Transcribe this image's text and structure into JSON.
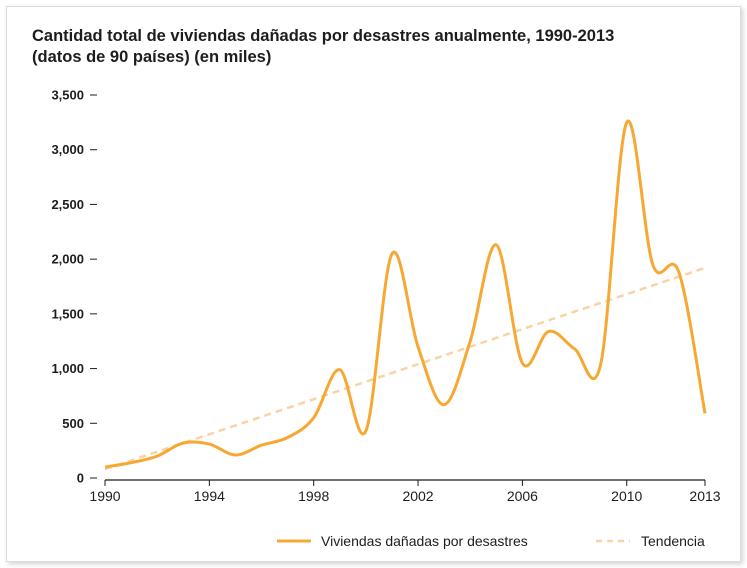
{
  "colors": {
    "series": "#f7a833",
    "trend": "#f9d3a3",
    "axis": "#1d1d1b",
    "text": "#1d1d1b"
  },
  "chart_data": {
    "type": "line",
    "title": "Cantidad total de viviendas dañadas por desastres anualmente, 1990-2013",
    "subtitle": "(datos de 90 países) (en miles)",
    "xlabel": "",
    "ylabel": "",
    "xlim": [
      1990,
      2013
    ],
    "ylim": [
      0,
      3500
    ],
    "x_ticks": [
      "1990",
      "1994",
      "1998",
      "2002",
      "2006",
      "2010",
      "2013"
    ],
    "y_ticks": [
      "0",
      "500",
      "1,000",
      "1,500",
      "2,000",
      "2,500",
      "3,000",
      "3,500"
    ],
    "grid": false,
    "legend_position": "bottom-right",
    "series": [
      {
        "name": "Viviendas dañadas por desastres",
        "style": "solid",
        "x": [
          1990,
          1991,
          1992,
          1993,
          1994,
          1995,
          1996,
          1997,
          1998,
          1999,
          2000,
          2001,
          2002,
          2003,
          2004,
          2005,
          2006,
          2007,
          2008,
          2009,
          2010,
          2011,
          2012,
          2013
        ],
        "y": [
          100,
          140,
          200,
          320,
          310,
          210,
          300,
          370,
          550,
          990,
          430,
          2050,
          1200,
          670,
          1250,
          2130,
          1050,
          1340,
          1180,
          1040,
          3250,
          1950,
          1880,
          590
        ]
      },
      {
        "name": "Tendencia",
        "style": "dashed",
        "x": [
          1990,
          2013
        ],
        "y": [
          80,
          1920
        ]
      }
    ]
  }
}
